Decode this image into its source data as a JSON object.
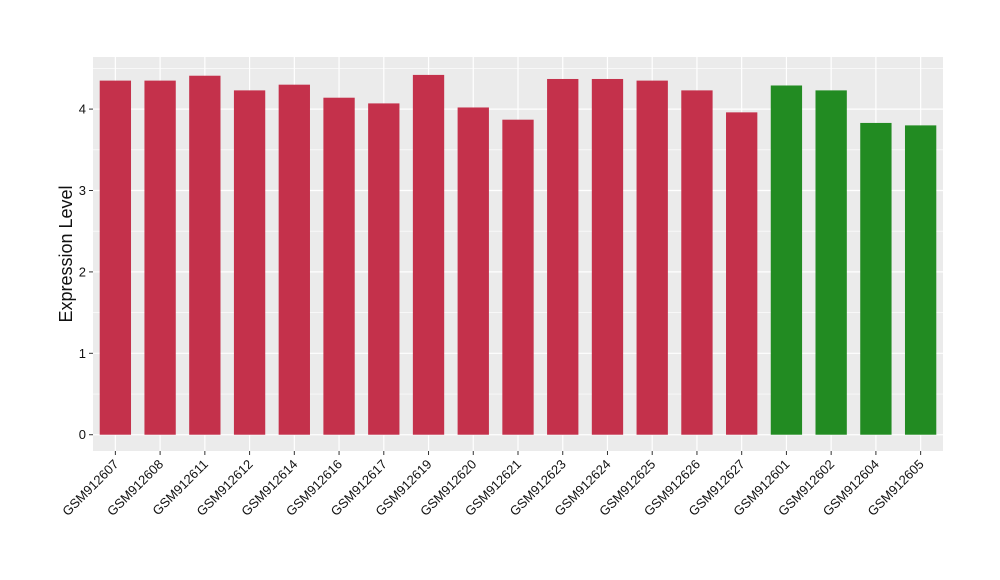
{
  "chart_data": {
    "type": "bar",
    "title": "",
    "xlabel": "",
    "ylabel": "Expression Level",
    "categories": [
      "GSM912607",
      "GSM912608",
      "GSM912611",
      "GSM912612",
      "GSM912614",
      "GSM912616",
      "GSM912617",
      "GSM912619",
      "GSM912620",
      "GSM912621",
      "GSM912623",
      "GSM912624",
      "GSM912625",
      "GSM912626",
      "GSM912627",
      "GSM912601",
      "GSM912602",
      "GSM912604",
      "GSM912605"
    ],
    "values": [
      4.35,
      4.35,
      4.41,
      4.23,
      4.3,
      4.14,
      4.07,
      4.42,
      4.02,
      3.87,
      4.37,
      4.37,
      4.35,
      4.23,
      3.96,
      4.29,
      4.23,
      3.83,
      3.8
    ],
    "bar_colors": [
      "#c4314b",
      "#c4314b",
      "#c4314b",
      "#c4314b",
      "#c4314b",
      "#c4314b",
      "#c4314b",
      "#c4314b",
      "#c4314b",
      "#c4314b",
      "#c4314b",
      "#c4314b",
      "#c4314b",
      "#c4314b",
      "#c4314b",
      "#228b22",
      "#228b22",
      "#228b22",
      "#228b22"
    ],
    "yticks": [
      0,
      1,
      2,
      3,
      4
    ],
    "ylim": [
      -0.2,
      4.64
    ],
    "grid": true,
    "panel_background": "#ebebeb",
    "grid_color": "#ffffff"
  }
}
